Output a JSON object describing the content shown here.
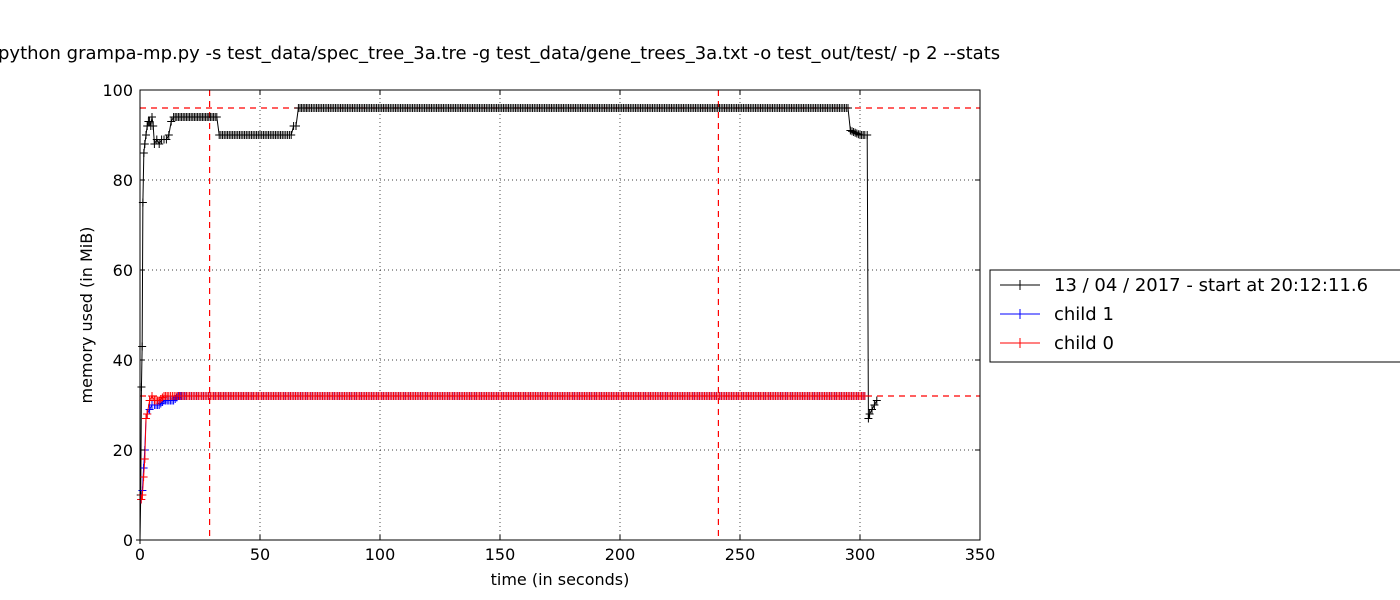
{
  "chart_data": {
    "type": "line",
    "title": "python grampa-mp.py -s test_data/spec_tree_3a.tre -g test_data/gene_trees_3a.txt -o test_out/test/ -p 2 --stats",
    "xlabel": "time (in seconds)",
    "ylabel": "memory used (in MiB)",
    "xlim": [
      0,
      350
    ],
    "ylim": [
      0,
      100
    ],
    "xticks": [
      0,
      50,
      100,
      150,
      200,
      250,
      300,
      350
    ],
    "yticks": [
      0,
      20,
      40,
      60,
      80,
      100
    ],
    "grid": true,
    "legend_position": "right, outside plot",
    "markers": "+",
    "series": [
      {
        "name": "13 / 04 / 2017 - start at 20:12:11.6",
        "color": "#000000",
        "points": [
          [
            0,
            0
          ],
          [
            0.3,
            10
          ],
          [
            0.6,
            34
          ],
          [
            0.9,
            43
          ],
          [
            1.2,
            75
          ],
          [
            1.6,
            86
          ],
          [
            2,
            88
          ],
          [
            2.5,
            90
          ],
          [
            3,
            92
          ],
          [
            3.5,
            93
          ],
          [
            4,
            93
          ],
          [
            4.5,
            92
          ],
          [
            5,
            94
          ],
          [
            5.5,
            92
          ],
          [
            6,
            88
          ],
          [
            7,
            89
          ],
          [
            8,
            88
          ],
          [
            9,
            89
          ],
          [
            10,
            89
          ],
          [
            11,
            89
          ],
          [
            12,
            90
          ],
          [
            13,
            93
          ],
          [
            14,
            94
          ],
          [
            16,
            94
          ],
          [
            18,
            94
          ],
          [
            20,
            94
          ],
          [
            22,
            94
          ],
          [
            24,
            94
          ],
          [
            26,
            94
          ],
          [
            28,
            94
          ],
          [
            30,
            94
          ],
          [
            32,
            94
          ],
          [
            33,
            90
          ],
          [
            40,
            90
          ],
          [
            45,
            90
          ],
          [
            50,
            90
          ],
          [
            55,
            90
          ],
          [
            60,
            90
          ],
          [
            63,
            90
          ],
          [
            64,
            92
          ],
          [
            65,
            92
          ],
          [
            66,
            96
          ],
          [
            70,
            96
          ],
          [
            80,
            96
          ],
          [
            90,
            96
          ],
          [
            100,
            96
          ],
          [
            110,
            96
          ],
          [
            120,
            96
          ],
          [
            130,
            96
          ],
          [
            140,
            96
          ],
          [
            150,
            96
          ],
          [
            160,
            96
          ],
          [
            170,
            96
          ],
          [
            180,
            96
          ],
          [
            190,
            96
          ],
          [
            200,
            96
          ],
          [
            210,
            96
          ],
          [
            220,
            96
          ],
          [
            230,
            96
          ],
          [
            240,
            96
          ],
          [
            250,
            96
          ],
          [
            260,
            96
          ],
          [
            270,
            96
          ],
          [
            280,
            96
          ],
          [
            290,
            96
          ],
          [
            295,
            96
          ],
          [
            296,
            91
          ],
          [
            300,
            90
          ],
          [
            302,
            90
          ],
          [
            303,
            90
          ],
          [
            303.5,
            27
          ],
          [
            304,
            28
          ],
          [
            305,
            29
          ],
          [
            306,
            30
          ],
          [
            307,
            31
          ]
        ]
      },
      {
        "name": "child 1",
        "color": "#0000ff",
        "points": [
          [
            0.5,
            9
          ],
          [
            1,
            11
          ],
          [
            1.5,
            16
          ],
          [
            2,
            20
          ],
          [
            2.5,
            27
          ],
          [
            3,
            28
          ],
          [
            4,
            29
          ],
          [
            5,
            30
          ],
          [
            6,
            30
          ],
          [
            8,
            30
          ],
          [
            10,
            31
          ],
          [
            12,
            31
          ],
          [
            14,
            31
          ],
          [
            16,
            32
          ],
          [
            20,
            32
          ],
          [
            30,
            32
          ],
          [
            50,
            32
          ],
          [
            100,
            32
          ],
          [
            150,
            32
          ],
          [
            200,
            32
          ],
          [
            250,
            32
          ],
          [
            300,
            32
          ],
          [
            302,
            32
          ]
        ]
      },
      {
        "name": "child 0",
        "color": "#ff0000",
        "points": [
          [
            0.5,
            9
          ],
          [
            1,
            10
          ],
          [
            1.5,
            14
          ],
          [
            2,
            18
          ],
          [
            2.5,
            27
          ],
          [
            3,
            28
          ],
          [
            4,
            31
          ],
          [
            5,
            32
          ],
          [
            6,
            31
          ],
          [
            8,
            31
          ],
          [
            10,
            32
          ],
          [
            12,
            32
          ],
          [
            15,
            32
          ],
          [
            20,
            32
          ],
          [
            30,
            32
          ],
          [
            50,
            32
          ],
          [
            100,
            32
          ],
          [
            150,
            32
          ],
          [
            200,
            32
          ],
          [
            250,
            32
          ],
          [
            300,
            32
          ],
          [
            302,
            32
          ]
        ]
      }
    ],
    "reference_lines": {
      "vertical_x": [
        29,
        241
      ],
      "horizontal_y": [
        96,
        32
      ],
      "color": "#ff0000",
      "style": "dashed"
    }
  }
}
